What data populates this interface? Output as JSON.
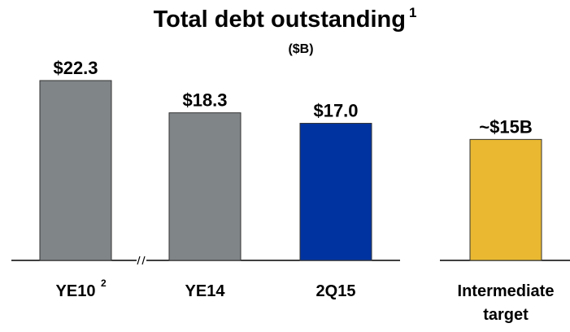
{
  "chart_data": {
    "type": "bar",
    "title": "Total debt outstanding",
    "title_footnote": "1",
    "subtitle": "($B)",
    "categories": [
      {
        "name": "YE10",
        "footnote": "2",
        "lines": [
          "YE10"
        ]
      },
      {
        "name": "YE14",
        "footnote": "",
        "lines": [
          "YE14"
        ]
      },
      {
        "name": "2Q15",
        "footnote": "",
        "lines": [
          "2Q15"
        ]
      },
      {
        "name": "Intermediate target",
        "footnote": "",
        "lines": [
          "Intermediate",
          "target"
        ]
      }
    ],
    "values": [
      22.3,
      18.3,
      17.0,
      15.0
    ],
    "value_labels": [
      "$22.3",
      "$18.3",
      "$17.0",
      "~$15B"
    ],
    "colors": [
      "#808588",
      "#808588",
      "#0033a0",
      "#eab931"
    ],
    "axis_break_between": [
      0,
      1
    ],
    "ylim": [
      0,
      26.5
    ],
    "grid": false,
    "legend": "none"
  }
}
